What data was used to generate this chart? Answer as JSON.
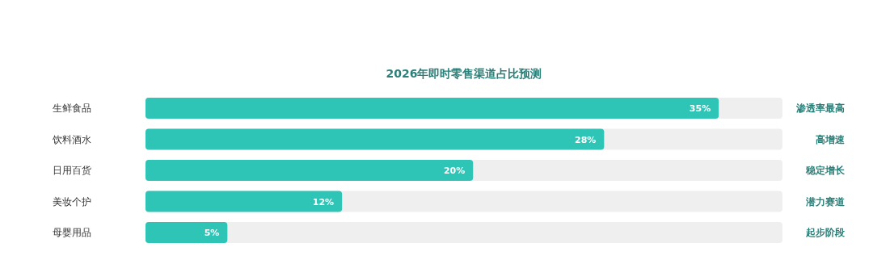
{
  "chart_data": {
    "type": "bar",
    "orientation": "horizontal",
    "title": "2026年即时零售渠道占比预测",
    "categories": [
      "生鲜食品",
      "饮料酒水",
      "日用百货",
      "美妆个护",
      "母婴用品"
    ],
    "values": [
      35,
      28,
      20,
      12,
      5
    ],
    "value_labels": [
      "35%",
      "28%",
      "20%",
      "12%",
      "5%"
    ],
    "color": "#2ec4b6",
    "annotations": [
      "渗透率最高",
      "高增速",
      "稳定增长",
      "潜力赛道",
      "起步阶段"
    ]
  }
}
